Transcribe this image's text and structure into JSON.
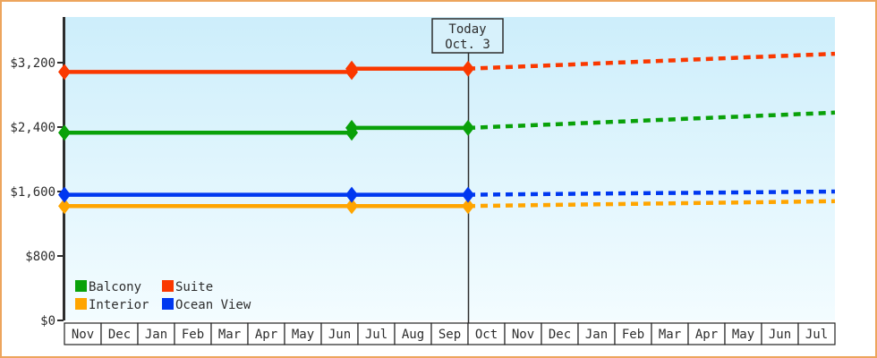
{
  "colors": {
    "frame_border": "#eda55d",
    "plot_bg_top": "#cdeefb",
    "plot_bg_bottom": "#f3fcff",
    "axis": "#2d2d2d",
    "today_box_fill": "#d7f1fb"
  },
  "annotation": {
    "line1": "Today",
    "line2": "Oct. 3"
  },
  "legend": [
    {
      "label": "Balcony",
      "color": "#09a109"
    },
    {
      "label": "Suite",
      "color": "#fa3800"
    },
    {
      "label": "Interior",
      "color": "#ffa500"
    },
    {
      "label": "Ocean View",
      "color": "#0038f0"
    }
  ],
  "chart_data": {
    "type": "line",
    "title": "",
    "xlabel": "",
    "ylabel": "",
    "grid": false,
    "legend_position": "bottom-left-inside",
    "x_categories": [
      "Nov",
      "Dec",
      "Jan",
      "Feb",
      "Mar",
      "Apr",
      "May",
      "Jun",
      "Jul",
      "Aug",
      "Sep",
      "Oct",
      "Nov",
      "Dec",
      "Jan",
      "Feb",
      "Mar",
      "Apr",
      "May",
      "Jun",
      "Jul"
    ],
    "yticks": [
      {
        "value": 0,
        "label": "$0"
      },
      {
        "value": 800,
        "label": "$800"
      },
      {
        "value": 1600,
        "label": "$1,600"
      },
      {
        "value": 2400,
        "label": "$2,400"
      },
      {
        "value": 3200,
        "label": "$3,200"
      }
    ],
    "ylim": [
      0,
      3760
    ],
    "today_marker": {
      "x_index": 11,
      "label": [
        "Today",
        "Oct. 3"
      ]
    },
    "series": [
      {
        "name": "Interior",
        "color": "#ffa500",
        "observed": [
          [
            0,
            1420
          ],
          [
            7.83,
            1420
          ],
          [
            11,
            1420
          ]
        ],
        "forecast": [
          [
            11,
            1420
          ],
          [
            21,
            1480
          ]
        ]
      },
      {
        "name": "Ocean View",
        "color": "#0038f0",
        "observed": [
          [
            0,
            1560
          ],
          [
            7.83,
            1560
          ],
          [
            11,
            1560
          ]
        ],
        "forecast": [
          [
            11,
            1560
          ],
          [
            21,
            1600
          ]
        ]
      },
      {
        "name": "Balcony",
        "color": "#09a109",
        "observed": [
          [
            0,
            2330
          ],
          [
            7.83,
            2330
          ],
          [
            7.83,
            2390
          ],
          [
            11,
            2390
          ]
        ],
        "forecast": [
          [
            11,
            2390
          ],
          [
            21,
            2580
          ]
        ]
      },
      {
        "name": "Suite",
        "color": "#fa3800",
        "observed": [
          [
            0,
            3085
          ],
          [
            7.83,
            3085
          ],
          [
            7.83,
            3125
          ],
          [
            11,
            3125
          ]
        ],
        "forecast": [
          [
            11,
            3125
          ],
          [
            21,
            3310
          ]
        ]
      }
    ]
  }
}
